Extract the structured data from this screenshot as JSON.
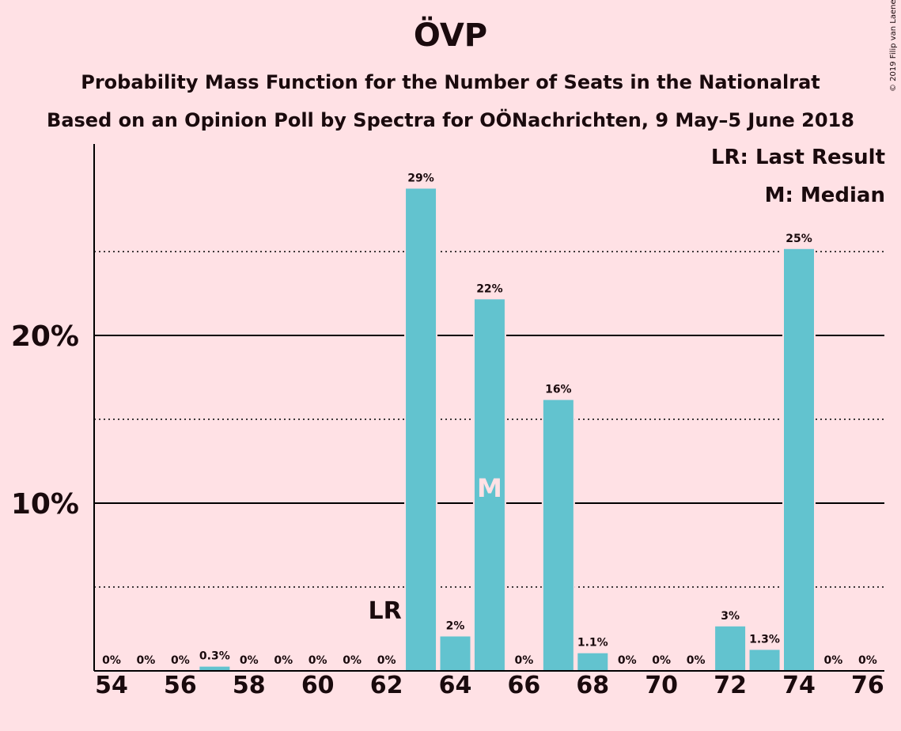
{
  "chart_data": {
    "type": "bar",
    "title": "ÖVP",
    "subtitle_lines": [
      "Probability Mass Function for the Number of Seats in the Nationalrat",
      "Based on an Opinion Poll by Spectra for OÖNachrichten, 9 May–5 June 2018"
    ],
    "copyright": "© 2019 Filip van Laenen",
    "legend": {
      "lr": "LR: Last Result",
      "m": "M: Median"
    },
    "x": [
      54,
      55,
      56,
      57,
      58,
      59,
      60,
      61,
      62,
      63,
      64,
      65,
      66,
      67,
      68,
      69,
      70,
      71,
      72,
      73,
      74,
      75,
      76
    ],
    "values": [
      0,
      0,
      0,
      0.3,
      0,
      0,
      0,
      0,
      0,
      28.8,
      2.1,
      22.2,
      0,
      16.2,
      1.1,
      0,
      0,
      0,
      2.7,
      1.3,
      25.2,
      0,
      0
    ],
    "value_labels": [
      "0%",
      "0%",
      "0%",
      "0.3%",
      "0%",
      "0%",
      "0%",
      "0%",
      "0%",
      "29%",
      "2%",
      "22%",
      "0%",
      "16%",
      "1.1%",
      "0%",
      "0%",
      "0%",
      "3%",
      "1.3%",
      "25%",
      "0%",
      "0%"
    ],
    "x_tick_labels": [
      "54",
      "56",
      "58",
      "60",
      "62",
      "64",
      "66",
      "68",
      "70",
      "72",
      "74",
      "76"
    ],
    "y_tick_labels": [
      "10%",
      "20%"
    ],
    "ylim": [
      0,
      30
    ],
    "major_gridlines": [
      10,
      20
    ],
    "minor_gridlines": [
      5,
      15,
      25
    ],
    "last_result": {
      "x": 62,
      "label": "LR"
    },
    "median": {
      "x": 65,
      "label": "M"
    },
    "bar_color": "#62c3cf",
    "background": "#ffe1e5"
  }
}
